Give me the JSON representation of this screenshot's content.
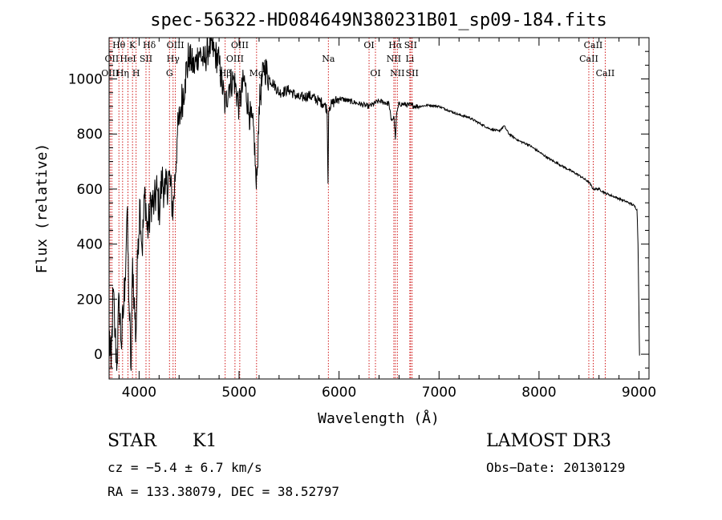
{
  "chart_data": {
    "type": "line",
    "title": "spec-56322-HD084649N380231B01_sp09-184.fits",
    "xlabel": "Wavelength (Å)",
    "ylabel": "Flux (relative)",
    "xlim": [
      3700,
      9100
    ],
    "ylim": [
      -90,
      1150
    ],
    "xticks": [
      4000,
      5000,
      6000,
      7000,
      8000,
      9000
    ],
    "yticks": [
      0,
      200,
      400,
      600,
      800,
      1000
    ],
    "series": [
      {
        "name": "flux",
        "x": [
          3700,
          3720,
          3740,
          3760,
          3780,
          3800,
          3820,
          3840,
          3860,
          3880,
          3900,
          3920,
          3935,
          3950,
          3968,
          3990,
          4010,
          4030,
          4060,
          4080,
          4101,
          4120,
          4150,
          4180,
          4200,
          4230,
          4260,
          4300,
          4340,
          4380,
          4420,
          4460,
          4500,
          4550,
          4600,
          4650,
          4700,
          4750,
          4800,
          4861,
          4900,
          4950,
          5000,
          5050,
          5100,
          5150,
          5172,
          5183,
          5200,
          5250,
          5300,
          5350,
          5400,
          5500,
          5600,
          5700,
          5800,
          5850,
          5880,
          5890,
          5896,
          5905,
          5930,
          6000,
          6100,
          6200,
          6300,
          6400,
          6500,
          6520,
          6550,
          6563,
          6575,
          6600,
          6700,
          6800,
          6900,
          7000,
          7100,
          7200,
          7300,
          7400,
          7500,
          7600,
          7650,
          7700,
          7800,
          7900,
          8000,
          8100,
          8200,
          8300,
          8400,
          8500,
          8542,
          8600,
          8662,
          8700,
          8800,
          8900,
          8950,
          8980,
          8990,
          9000,
          9005
        ],
        "y": [
          80,
          -50,
          230,
          60,
          -30,
          210,
          40,
          130,
          280,
          520,
          180,
          -60,
          350,
          200,
          60,
          420,
          560,
          380,
          600,
          450,
          470,
          560,
          540,
          600,
          520,
          640,
          580,
          650,
          520,
          780,
          900,
          1000,
          1080,
          1040,
          1100,
          1060,
          1120,
          1100,
          1060,
          900,
          980,
          1000,
          900,
          1000,
          880,
          800,
          600,
          680,
          900,
          1050,
          1000,
          980,
          950,
          960,
          930,
          940,
          920,
          910,
          890,
          620,
          880,
          900,
          910,
          930,
          920,
          910,
          900,
          920,
          910,
          850,
          860,
          780,
          870,
          910,
          905,
          900,
          905,
          900,
          885,
          870,
          860,
          840,
          820,
          810,
          830,
          800,
          775,
          760,
          735,
          710,
          690,
          670,
          650,
          625,
          600,
          600,
          585,
          580,
          565,
          550,
          540,
          525,
          400,
          150,
          -5
        ]
      }
    ],
    "spectral_lines": [
      {
        "label": "Hθ",
        "x": 3798,
        "row": 0
      },
      {
        "label": "OII",
        "x": 3727,
        "row": 1
      },
      {
        "label": "OIII",
        "x": 3710,
        "row": 2
      },
      {
        "label": "K",
        "x": 3934,
        "row": 0
      },
      {
        "label": "HeI",
        "x": 3889,
        "row": 1
      },
      {
        "label": "Hη",
        "x": 3835,
        "row": 2
      },
      {
        "label": "SII",
        "x": 4069,
        "row": 1
      },
      {
        "label": "H",
        "x": 3970,
        "row": 2
      },
      {
        "label": "Hδ",
        "x": 4102,
        "row": 0
      },
      {
        "label": "OIII",
        "x": 4363,
        "row": 0
      },
      {
        "label": "Hγ",
        "x": 4340,
        "row": 1
      },
      {
        "label": "G",
        "x": 4304,
        "row": 2
      },
      {
        "label": "OIII",
        "x": 5007,
        "row": 0
      },
      {
        "label": "OIII",
        "x": 4959,
        "row": 1
      },
      {
        "label": "Hβ",
        "x": 4861,
        "row": 2
      },
      {
        "label": "Mg",
        "x": 5175,
        "row": 2
      },
      {
        "label": "Na",
        "x": 5893,
        "row": 1
      },
      {
        "label": "OI",
        "x": 6300,
        "row": 0
      },
      {
        "label": "OI",
        "x": 6364,
        "row": 2
      },
      {
        "label": "Hα",
        "x": 6563,
        "row": 0
      },
      {
        "label": "SII",
        "x": 6716,
        "row": 0
      },
      {
        "label": "NII",
        "x": 6548,
        "row": 1
      },
      {
        "label": "Li",
        "x": 6708,
        "row": 1
      },
      {
        "label": "NII",
        "x": 6583,
        "row": 2
      },
      {
        "label": "SII",
        "x": 6731,
        "row": 2
      },
      {
        "label": "CaII",
        "x": 8542,
        "row": 0
      },
      {
        "label": "CaII",
        "x": 8498,
        "row": 1
      },
      {
        "label": "CaII",
        "x": 8662,
        "row": 2
      }
    ]
  },
  "info": {
    "object_class": "STAR",
    "subclass": "K1",
    "survey": "LAMOST DR3",
    "velocity": "cz = −5.4 ± 6.7 km/s",
    "obs_date": "Obs−Date: 20130129",
    "coords": "RA = 133.38079, DEC =  38.52797"
  },
  "colors": {
    "spectrum": "#000000",
    "line_marker": "#cc0000",
    "axes": "#000000"
  }
}
